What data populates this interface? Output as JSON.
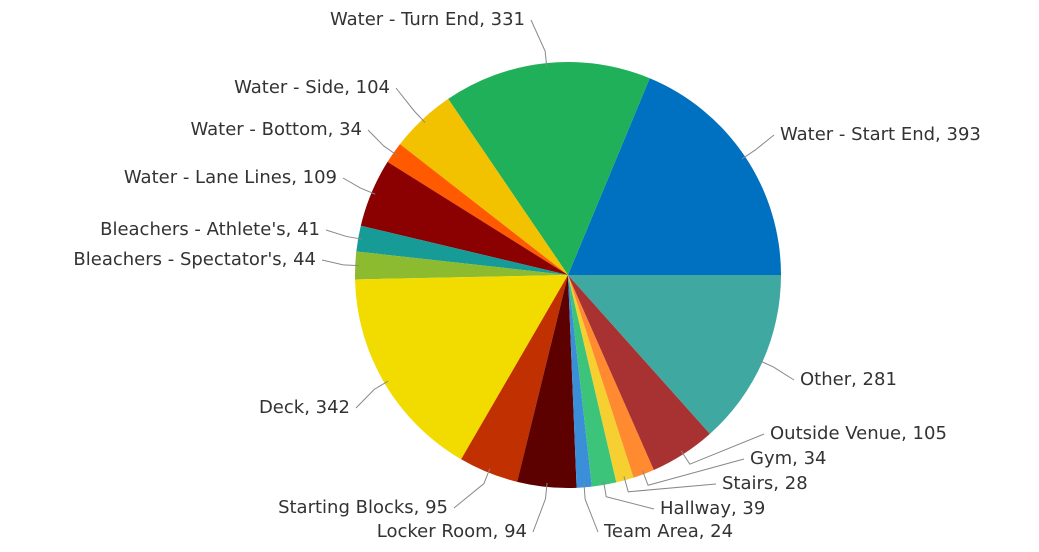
{
  "chart_data": {
    "type": "pie",
    "labels": [
      "Water - Start End, 393",
      "Water - Turn End, 331",
      "Water - Side, 104",
      "Water - Bottom, 34",
      "Water - Lane Lines, 109",
      "Bleachers - Athlete's, 41",
      "Bleachers - Spectator's, 44",
      "Deck, 342",
      "Starting Blocks, 95",
      "Locker Room, 94",
      "Team Area, 24",
      "Hallway, 39",
      "Stairs, 28",
      "Gym, 34",
      "Outside Venue, 105",
      "Other, 281"
    ],
    "values": [
      393,
      331,
      104,
      34,
      109,
      41,
      44,
      342,
      95,
      94,
      24,
      39,
      28,
      34,
      105,
      281
    ],
    "colors": [
      "#0070c0",
      "#21b05a",
      "#f2c200",
      "#ff5a00",
      "#8b0000",
      "#169b96",
      "#8dbb2f",
      "#f2dc00",
      "#c03000",
      "#5c0000",
      "#3a8fd8",
      "#3cc47a",
      "#f5d030",
      "#ff8a30",
      "#a83232",
      "#3fa8a0"
    ]
  }
}
